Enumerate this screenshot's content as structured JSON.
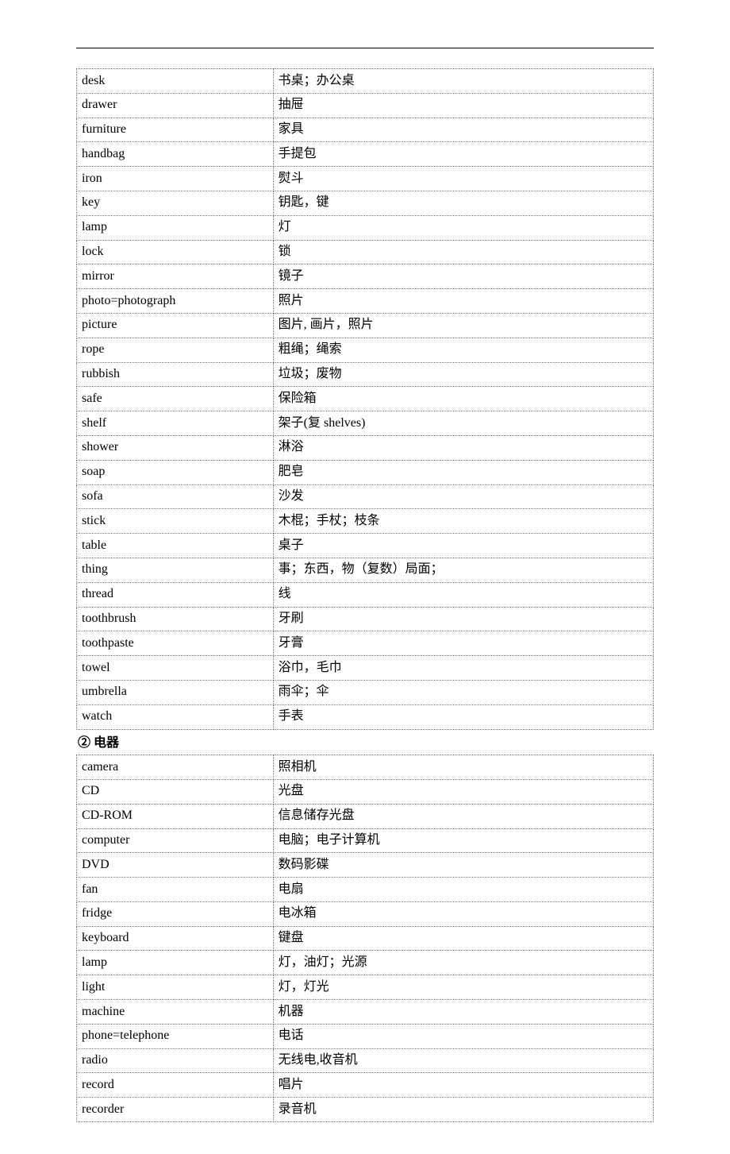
{
  "page": {
    "background_color": "#ffffff",
    "text_color": "#000000",
    "divider_color": "#000000",
    "cell_border_color": "#7a7a7a",
    "cell_border_style": "dotted",
    "font_size_pt": 12,
    "col_en_width_pct": 33.5,
    "col_cn_width_pct": 66.5
  },
  "table1": {
    "rows": [
      {
        "en": "desk",
        "cn": "书桌；办公桌"
      },
      {
        "en": "drawer",
        "cn": "抽屉"
      },
      {
        "en": "furniture",
        "cn": "家具"
      },
      {
        "en": "handbag",
        "cn": "手提包"
      },
      {
        "en": "iron",
        "cn": "熨斗"
      },
      {
        "en": "key",
        "cn": "钥匙，键"
      },
      {
        "en": "lamp",
        "cn": "灯"
      },
      {
        "en": "lock",
        "cn": "锁"
      },
      {
        "en": "mirror",
        "cn": "镜子"
      },
      {
        "en": "photo=photograph",
        "cn": "照片"
      },
      {
        "en": "picture",
        "cn": "图片, 画片，照片"
      },
      {
        "en": "rope",
        "cn": "粗绳；绳索"
      },
      {
        "en": "rubbish",
        "cn": "垃圾；废物"
      },
      {
        "en": "safe",
        "cn": "保险箱"
      },
      {
        "en": "shelf",
        "cn": "架子(复 shelves)"
      },
      {
        "en": "shower",
        "cn": "淋浴"
      },
      {
        "en": "soap",
        "cn": "肥皂"
      },
      {
        "en": "sofa",
        "cn": "沙发"
      },
      {
        "en": "stick",
        "cn": "木棍；手杖；枝条"
      },
      {
        "en": "table",
        "cn": "桌子"
      },
      {
        "en": "thing",
        "cn": "事；东西，物（复数）局面；"
      },
      {
        "en": "thread",
        "cn": "线"
      },
      {
        "en": "toothbrush",
        "cn": "牙刷"
      },
      {
        "en": "toothpaste",
        "cn": "牙膏"
      },
      {
        "en": "towel",
        "cn": "浴巾，毛巾"
      },
      {
        "en": "umbrella",
        "cn": "雨伞；伞"
      },
      {
        "en": "watch",
        "cn": "手表"
      }
    ]
  },
  "section2": {
    "heading": "② 电器"
  },
  "table2": {
    "rows": [
      {
        "en": "camera",
        "cn": "照相机"
      },
      {
        "en": "CD",
        "cn": "光盘"
      },
      {
        "en": "CD-ROM",
        "cn": "信息储存光盘"
      },
      {
        "en": "computer",
        "cn": "电脑；电子计算机"
      },
      {
        "en": "DVD",
        "cn": "数码影碟"
      },
      {
        "en": "fan",
        "cn": "电扇"
      },
      {
        "en": "fridge",
        "cn": "电冰箱"
      },
      {
        "en": "keyboard",
        "cn": "键盘"
      },
      {
        "en": "lamp",
        "cn": "灯，油灯；光源"
      },
      {
        "en": "light",
        "cn": "灯，灯光"
      },
      {
        "en": "machine",
        "cn": "机器"
      },
      {
        "en": "phone=telephone",
        "cn": "电话"
      },
      {
        "en": "radio",
        "cn": "无线电,收音机"
      },
      {
        "en": "record",
        "cn": "唱片"
      },
      {
        "en": "recorder",
        "cn": "录音机"
      }
    ]
  }
}
